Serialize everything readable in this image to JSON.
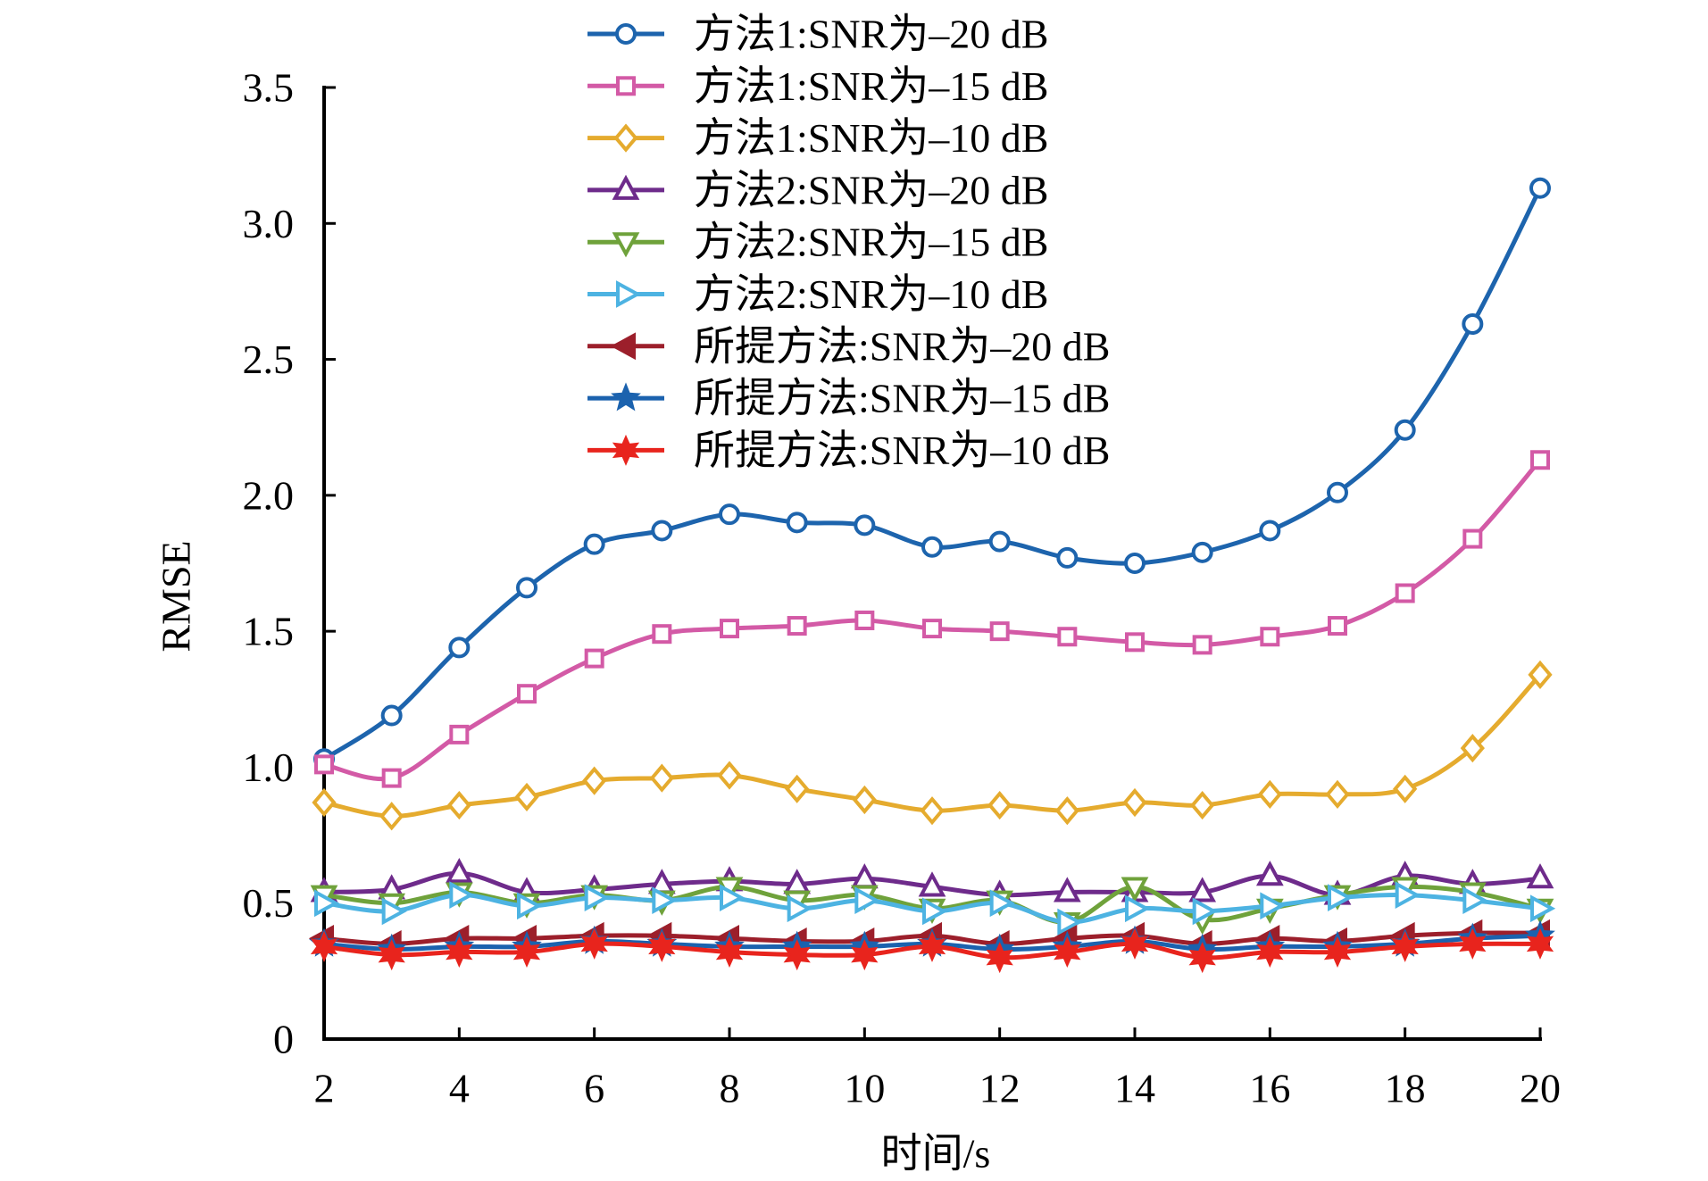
{
  "chart_data": {
    "type": "line",
    "title": "",
    "xlabel": "时间/s",
    "ylabel": "RMSE",
    "xlim": [
      2,
      20
    ],
    "ylim": [
      0,
      3.5
    ],
    "x": [
      2,
      3,
      4,
      5,
      6,
      7,
      8,
      9,
      10,
      11,
      12,
      13,
      14,
      15,
      16,
      17,
      18,
      19,
      20
    ],
    "xticks": [
      2,
      4,
      6,
      8,
      10,
      12,
      14,
      16,
      18,
      20
    ],
    "xtick_labels": [
      "2",
      "4",
      "6",
      "8",
      "10",
      "12",
      "14",
      "16",
      "18",
      "20"
    ],
    "yticks": [
      0,
      0.5,
      1.0,
      1.5,
      2.0,
      2.5,
      3.0,
      3.5
    ],
    "ytick_labels": [
      "0",
      "0.5",
      "1.0",
      "1.5",
      "2.0",
      "2.5",
      "3.0",
      "3.5"
    ],
    "grid": false,
    "legend_position": "top-center",
    "series": [
      {
        "name": "方法1:SNR为–20 dB",
        "color": "#1d64ad",
        "marker": "circle",
        "values": [
          1.03,
          1.19,
          1.44,
          1.66,
          1.82,
          1.87,
          1.93,
          1.9,
          1.89,
          1.81,
          1.83,
          1.77,
          1.75,
          1.79,
          1.87,
          2.01,
          2.24,
          2.63,
          3.13
        ]
      },
      {
        "name": "方法1:SNR为–15 dB",
        "color": "#d35aa6",
        "marker": "square",
        "values": [
          1.01,
          0.96,
          1.12,
          1.27,
          1.4,
          1.49,
          1.51,
          1.52,
          1.54,
          1.51,
          1.5,
          1.48,
          1.46,
          1.45,
          1.48,
          1.52,
          1.64,
          1.84,
          2.13
        ]
      },
      {
        "name": "方法1:SNR为–10 dB",
        "color": "#e5ab2e",
        "marker": "diamond",
        "values": [
          0.87,
          0.82,
          0.86,
          0.89,
          0.95,
          0.96,
          0.97,
          0.92,
          0.88,
          0.84,
          0.86,
          0.84,
          0.87,
          0.86,
          0.9,
          0.9,
          0.92,
          1.07,
          1.34
        ]
      },
      {
        "name": "方法2:SNR为–20 dB",
        "color": "#6e2b8b",
        "marker": "triangle-up",
        "values": [
          0.54,
          0.55,
          0.61,
          0.54,
          0.55,
          0.57,
          0.58,
          0.57,
          0.59,
          0.56,
          0.53,
          0.54,
          0.54,
          0.54,
          0.6,
          0.53,
          0.6,
          0.57,
          0.59
        ]
      },
      {
        "name": "方法2:SNR为–15 dB",
        "color": "#6fa23b",
        "marker": "triangle-down",
        "values": [
          0.53,
          0.5,
          0.54,
          0.5,
          0.53,
          0.51,
          0.56,
          0.51,
          0.53,
          0.48,
          0.51,
          0.43,
          0.56,
          0.44,
          0.48,
          0.53,
          0.56,
          0.54,
          0.48
        ]
      },
      {
        "name": "方法2:SNR为–10 dB",
        "color": "#4db3e2",
        "marker": "triangle-right",
        "values": [
          0.5,
          0.47,
          0.53,
          0.49,
          0.52,
          0.51,
          0.52,
          0.48,
          0.51,
          0.47,
          0.5,
          0.43,
          0.48,
          0.47,
          0.49,
          0.52,
          0.53,
          0.51,
          0.48
        ]
      },
      {
        "name": "所提方法:SNR为–20 dB",
        "color": "#9c1f2b",
        "marker": "triangle-left",
        "values": [
          0.37,
          0.35,
          0.37,
          0.37,
          0.38,
          0.38,
          0.37,
          0.36,
          0.36,
          0.38,
          0.35,
          0.37,
          0.38,
          0.35,
          0.37,
          0.36,
          0.38,
          0.39,
          0.39
        ]
      },
      {
        "name": "所提方法:SNR为–15 dB",
        "color": "#1b62ae",
        "marker": "star5",
        "values": [
          0.35,
          0.33,
          0.34,
          0.34,
          0.36,
          0.35,
          0.34,
          0.34,
          0.34,
          0.35,
          0.33,
          0.34,
          0.36,
          0.33,
          0.34,
          0.34,
          0.35,
          0.37,
          0.38
        ]
      },
      {
        "name": "所提方法:SNR为–10 dB",
        "color": "#e8241d",
        "marker": "star6",
        "values": [
          0.34,
          0.31,
          0.32,
          0.32,
          0.35,
          0.34,
          0.32,
          0.31,
          0.31,
          0.34,
          0.3,
          0.32,
          0.35,
          0.3,
          0.32,
          0.32,
          0.34,
          0.35,
          0.35
        ]
      }
    ]
  }
}
